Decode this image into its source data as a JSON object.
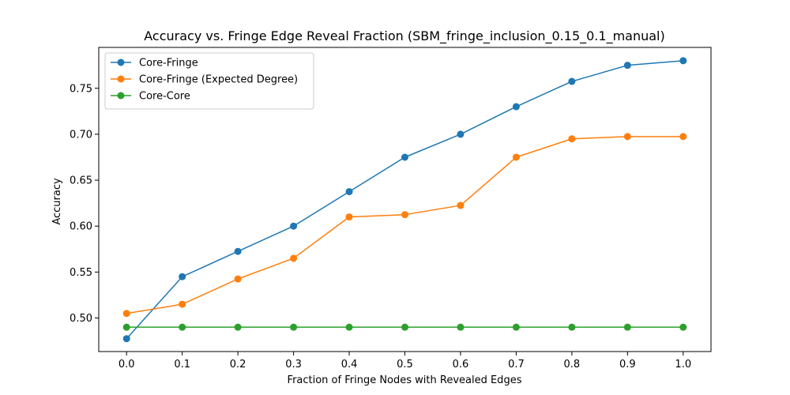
{
  "chart_data": {
    "type": "line",
    "title": "Accuracy vs. Fringe Edge Reveal Fraction (SBM_fringe_inclusion_0.15_0.1_manual)",
    "xlabel": "Fraction of Fringe Nodes with Revealed Edges",
    "ylabel": "Accuracy",
    "x": [
      0.0,
      0.1,
      0.2,
      0.3,
      0.4,
      0.5,
      0.6,
      0.7,
      0.8,
      0.9,
      1.0
    ],
    "x_tick_labels": [
      "0.0",
      "0.1",
      "0.2",
      "0.3",
      "0.4",
      "0.5",
      "0.6",
      "0.7",
      "0.8",
      "0.9",
      "1.0"
    ],
    "y_ticks": [
      0.5,
      0.55,
      0.6,
      0.65,
      0.7,
      0.75
    ],
    "y_tick_labels": [
      "0.50",
      "0.55",
      "0.60",
      "0.65",
      "0.70",
      "0.75"
    ],
    "xlim": [
      -0.05,
      1.05
    ],
    "ylim": [
      0.4635,
      0.7945
    ],
    "grid": false,
    "legend_position": "upper left",
    "series": [
      {
        "name": "Core-Fringe",
        "color": "#1f77b4",
        "values": [
          0.4775,
          0.545,
          0.5725,
          0.6,
          0.6375,
          0.675,
          0.7,
          0.73,
          0.7575,
          0.775,
          0.78
        ]
      },
      {
        "name": "Core-Fringe (Expected Degree)",
        "color": "#ff7f0e",
        "values": [
          0.505,
          0.515,
          0.5425,
          0.565,
          0.61,
          0.6125,
          0.6225,
          0.675,
          0.695,
          0.6975,
          0.6975
        ]
      },
      {
        "name": "Core-Core",
        "color": "#2ca02c",
        "values": [
          0.49,
          0.49,
          0.49,
          0.49,
          0.49,
          0.49,
          0.49,
          0.49,
          0.49,
          0.49,
          0.49
        ]
      }
    ]
  }
}
